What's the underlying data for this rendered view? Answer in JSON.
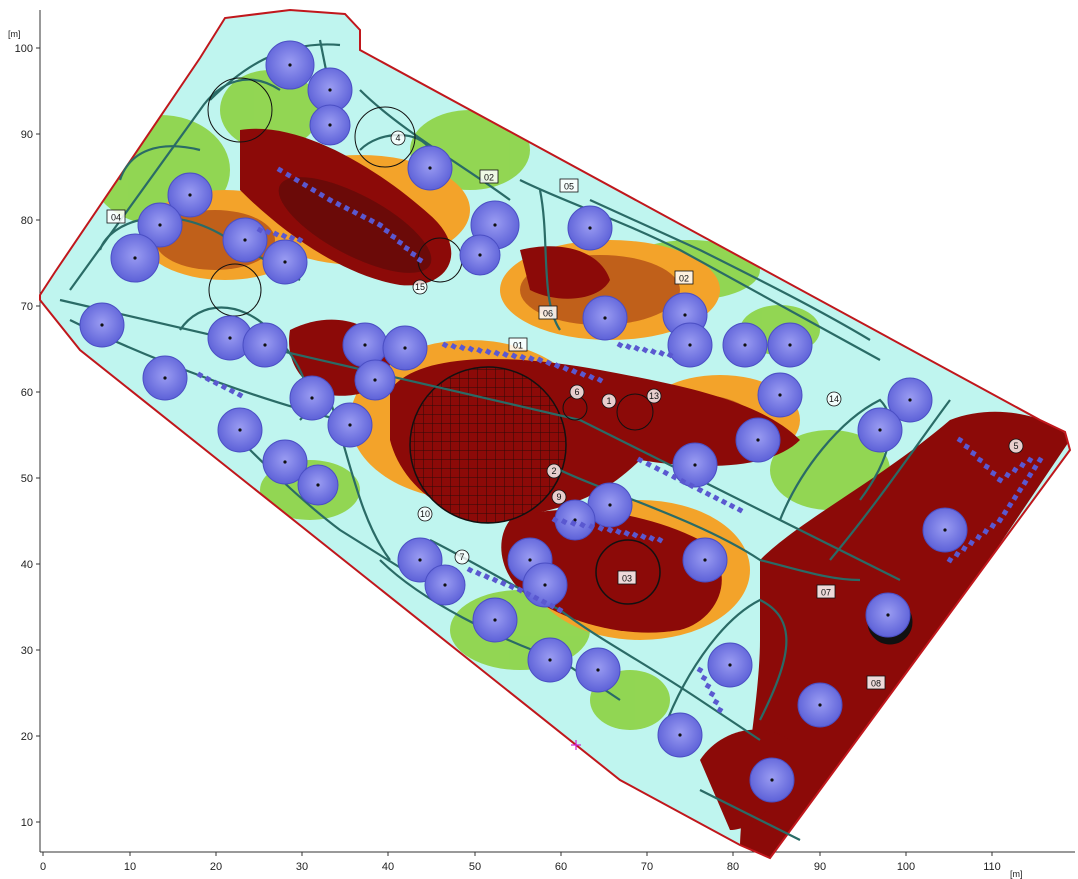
{
  "axes": {
    "x_unit": "[m]",
    "y_unit": "[m]",
    "x_ticks": [
      "0",
      "10",
      "20",
      "30",
      "40",
      "50",
      "60",
      "70",
      "80",
      "90",
      "100",
      "110"
    ],
    "y_ticks": [
      "100",
      "90",
      "80",
      "70",
      "60",
      "50",
      "40",
      "30",
      "20",
      "10"
    ]
  },
  "zone_labels": [
    "01",
    "02",
    "02",
    "03",
    "04",
    "05",
    "06",
    "07",
    "08"
  ],
  "numbered_markers": [
    "1",
    "2",
    "4",
    "5",
    "6",
    "7",
    "9",
    "10",
    "13",
    "14",
    "15"
  ],
  "colors": {
    "boundary": "#c0171c",
    "path": "#2a6b66",
    "low": "#bff5ef",
    "lowmid": "#67d4b6",
    "mid": "#8fd44a",
    "midhigh": "#f3a32a",
    "high": "#c0601a",
    "max": "#8c0a08",
    "tree": "#7478e6",
    "shrub": "#5a58d0"
  }
}
